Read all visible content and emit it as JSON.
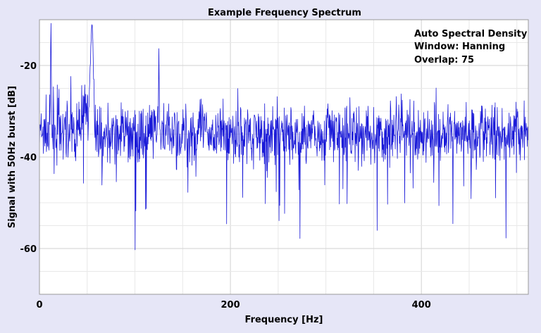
{
  "chart_data": {
    "type": "line",
    "title": "Example Frequency Spectrum",
    "xlabel": "Frequency [Hz]",
    "ylabel": "Signal with 50Hz burst [dB]",
    "xlim": [
      0,
      512
    ],
    "ylim": [
      -70,
      -10
    ],
    "xticks": [
      0,
      200,
      400
    ],
    "xtick_labels": [
      "0",
      "200",
      "400"
    ],
    "yticks": [
      -20,
      -40,
      -60
    ],
    "ytick_labels": [
      "-20",
      "-40",
      "-60"
    ],
    "grid": true,
    "series_color": "#1a1ad8",
    "noise_floor_db": -35,
    "peaks": [
      {
        "freq": 12,
        "db": -10.5
      },
      {
        "freq": 55,
        "db": -11
      },
      {
        "freq": 125,
        "db": -16
      }
    ],
    "annotations": [
      "Auto Spectral Density",
      "Window: Hanning",
      "Overlap: 75"
    ]
  }
}
